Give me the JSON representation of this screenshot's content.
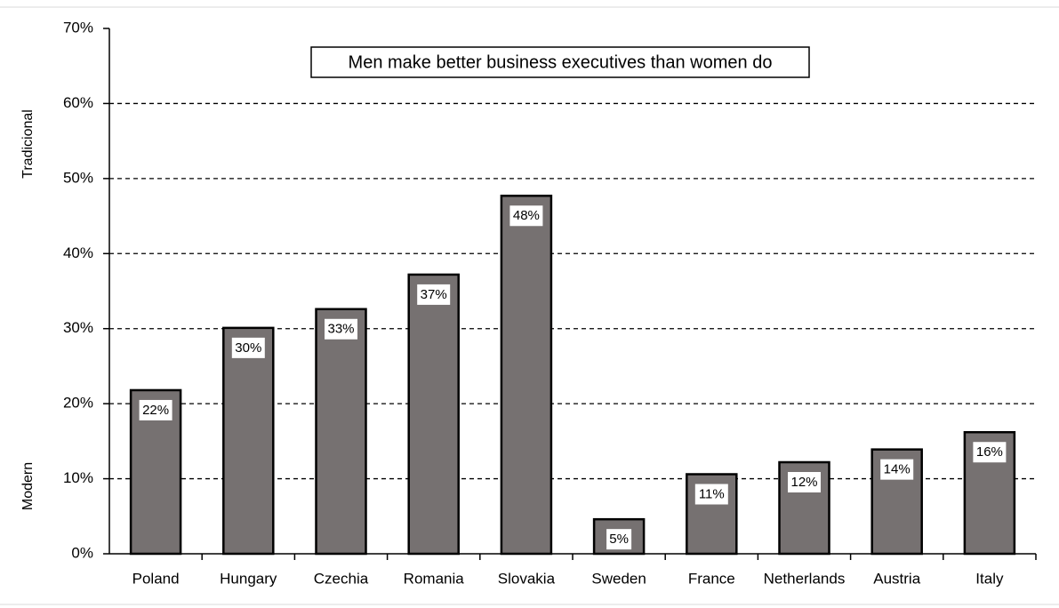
{
  "chart_data": {
    "type": "bar",
    "title": "Men make better business executives than women do",
    "annotations": [
      "Tradicional",
      "Modern"
    ],
    "categories": [
      "Poland",
      "Hungary",
      "Czechia",
      "Romania",
      "Slovakia",
      "Sweden",
      "France",
      "Netherlands",
      "Austria",
      "Italy"
    ],
    "values": [
      21.8,
      30.1,
      32.6,
      37.2,
      47.7,
      4.6,
      10.6,
      12.2,
      13.9,
      16.2
    ],
    "value_labels": [
      "22%",
      "30%",
      "33%",
      "37%",
      "48%",
      "5%",
      "11%",
      "12%",
      "14%",
      "16%"
    ],
    "color": "#767171",
    "ylim": [
      0,
      70
    ],
    "yticks": [
      {
        "value": 0,
        "label": "0%"
      },
      {
        "value": 10,
        "label": "10%"
      },
      {
        "value": 20,
        "label": "20%"
      },
      {
        "value": 30,
        "label": "30%"
      },
      {
        "value": 40,
        "label": "40%"
      },
      {
        "value": 50,
        "label": "50%"
      },
      {
        "value": 60,
        "label": "60%"
      },
      {
        "value": 70,
        "label": "70%"
      }
    ],
    "grid": true
  }
}
